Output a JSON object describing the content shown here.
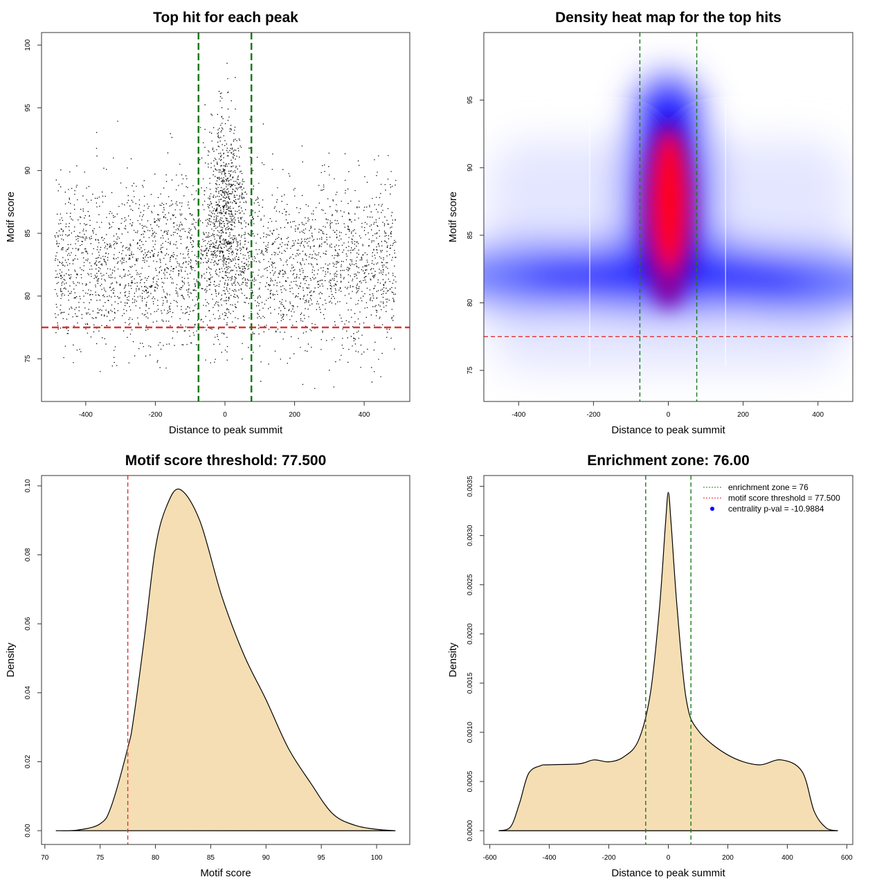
{
  "chart_data": [
    {
      "type": "scatter",
      "title": "Top hit for each peak",
      "xlabel": "Distance to peak summit",
      "ylabel": "Motif score",
      "xlim": [
        -527,
        531
      ],
      "ylim": [
        71.6,
        101
      ],
      "xticks": [
        "-400",
        "-200",
        "0",
        "200",
        "400"
      ],
      "yticks": [
        "75",
        "80",
        "85",
        "90",
        "95",
        "100"
      ],
      "hlines": [
        {
          "y": 77.5,
          "color": "#e03030",
          "style": "dashed"
        }
      ],
      "vlines": [
        {
          "x": -76,
          "color": "#1a7a1a",
          "style": "dashed"
        },
        {
          "x": 76,
          "color": "#1a7a1a",
          "style": "dashed"
        }
      ],
      "point_color": "#000000"
    },
    {
      "type": "heatmap",
      "title": "Density heat map for the top hits",
      "xlabel": "Distance to peak summit",
      "ylabel": "Motif score",
      "xlim": [
        -493,
        493
      ],
      "ylim": [
        72.7,
        100
      ],
      "xticks": [
        "-400",
        "-200",
        "0",
        "200",
        "400"
      ],
      "yticks": [
        "75",
        "80",
        "85",
        "90",
        "95"
      ],
      "colors": [
        "#ffffff",
        "#0000ff",
        "#ff0000"
      ],
      "hlines": [
        {
          "y": 77.5,
          "color": "#e03030",
          "style": "dashed"
        }
      ],
      "vlines": [
        {
          "x": -76,
          "color": "#1a7a1a",
          "style": "dashed"
        },
        {
          "x": 76,
          "color": "#1a7a1a",
          "style": "dashed"
        }
      ]
    },
    {
      "type": "area",
      "title": "Motif score threshold: 77.500",
      "xlabel": "Motif score",
      "ylabel": "Density",
      "xlim": [
        69.7,
        103
      ],
      "ylim": [
        -0.004,
        0.103
      ],
      "xticks": [
        "70",
        "75",
        "80",
        "85",
        "90",
        "95",
        "100"
      ],
      "yticks": [
        "0.00",
        "0.02",
        "0.04",
        "0.06",
        "0.08",
        "0.10"
      ],
      "fill": "#f5deb3",
      "x": [
        71,
        73,
        75,
        76,
        77.5,
        78,
        79,
        80,
        81,
        82.2,
        84,
        86,
        88,
        90,
        92,
        94,
        96,
        98,
        100,
        101.7
      ],
      "y": [
        0,
        0.0002,
        0.002,
        0.007,
        0.024,
        0.032,
        0.056,
        0.082,
        0.094,
        0.099,
        0.09,
        0.068,
        0.051,
        0.038,
        0.024,
        0.014,
        0.005,
        0.0016,
        0.0004,
        0
      ],
      "vlines": [
        {
          "x": 77.5,
          "color": "#e03030",
          "style": "dashed"
        }
      ]
    },
    {
      "type": "area",
      "title": "Enrichment zone: 76.00",
      "xlabel": "Distance to peak summit",
      "ylabel": "Density",
      "xlim": [
        -620,
        620
      ],
      "ylim": [
        -0.00014,
        0.00361
      ],
      "xticks": [
        "-600",
        "-400",
        "-200",
        "0",
        "200",
        "400",
        "600"
      ],
      "yticks": [
        "0.0000",
        "0.0005",
        "0.0010",
        "0.0015",
        "0.0020",
        "0.0025",
        "0.0030",
        "0.0035"
      ],
      "fill": "#f5deb3",
      "x": [
        -570,
        -530,
        -500,
        -470,
        -430,
        -400,
        -300,
        -250,
        -200,
        -150,
        -100,
        -60,
        -30,
        -10,
        0,
        10,
        30,
        60,
        100,
        200,
        300,
        380,
        450,
        490,
        530,
        570
      ],
      "y": [
        0,
        4e-05,
        0.00028,
        0.00058,
        0.00066,
        0.00067,
        0.00068,
        0.00072,
        0.0007,
        0.00075,
        0.00092,
        0.0014,
        0.00225,
        0.0031,
        0.00344,
        0.0031,
        0.00225,
        0.00134,
        0.00102,
        0.00077,
        0.00067,
        0.00072,
        0.0006,
        0.0002,
        3e-05,
        0
      ],
      "vlines": [
        {
          "x": -76,
          "color": "#1a7a1a",
          "style": "dashed"
        },
        {
          "x": 76,
          "color": "#1a7a1a",
          "style": "dashed"
        }
      ],
      "legend": {
        "position": "top-right",
        "entries": [
          {
            "label": "enrichment zone = 76",
            "color": "#1a7a1a",
            "symbol": "dotted-line"
          },
          {
            "label": "motif score threshold = 77.500",
            "color": "#e03030",
            "symbol": "dotted-line"
          },
          {
            "label": "centrality p-val = -10.9884",
            "color": "#0000ff",
            "symbol": "dot"
          }
        ]
      }
    }
  ]
}
